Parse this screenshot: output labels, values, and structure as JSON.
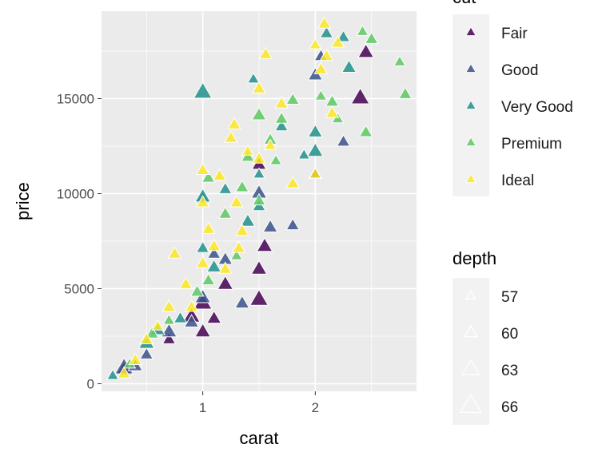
{
  "chart_data": {
    "type": "scatter",
    "title": "",
    "xlabel": "carat",
    "ylabel": "price",
    "xlim": [
      0.1,
      2.9
    ],
    "ylim": [
      -400,
      19600
    ],
    "x_ticks": [
      1,
      2
    ],
    "y_ticks": [
      0,
      5000,
      10000,
      15000
    ],
    "x_tick_labels": [
      "1",
      "2"
    ],
    "y_tick_labels": [
      "0",
      "5000",
      "10000",
      "15000"
    ],
    "marker": "triangle",
    "grid": true,
    "legends": {
      "color": {
        "title": "cut",
        "entries": [
          {
            "label": "Fair",
            "color": "#440154"
          },
          {
            "label": "Good",
            "color": "#3b528b"
          },
          {
            "label": "Very Good",
            "color": "#21908c"
          },
          {
            "label": "Premium",
            "color": "#5dc863"
          },
          {
            "label": "Ideal",
            "color": "#fde725"
          }
        ]
      },
      "size": {
        "title": "depth",
        "entries": [
          {
            "label": "57",
            "value": 57
          },
          {
            "label": "60",
            "value": 60
          },
          {
            "label": "63",
            "value": 63
          },
          {
            "label": "66",
            "value": 66
          }
        ]
      }
    },
    "series": [
      {
        "name": "Fair",
        "points": [
          [
            2.45,
            17400,
            64
          ],
          [
            2.4,
            15000,
            66
          ],
          [
            1.5,
            4400,
            66
          ],
          [
            1.5,
            6000,
            64
          ],
          [
            1.0,
            4200,
            66
          ],
          [
            1.5,
            11500,
            63
          ],
          [
            1.0,
            2700,
            64
          ],
          [
            0.7,
            2300,
            62
          ],
          [
            0.3,
            700,
            64
          ],
          [
            2.0,
            11000,
            62
          ],
          [
            1.2,
            5200,
            64
          ],
          [
            1.55,
            7200,
            64
          ],
          [
            1.1,
            3400,
            63
          ],
          [
            0.9,
            3500,
            65
          ]
        ]
      },
      {
        "name": "Good",
        "points": [
          [
            0.3,
            800,
            66
          ],
          [
            1.8,
            8300,
            62
          ],
          [
            1.5,
            10000,
            64
          ],
          [
            2.0,
            16200,
            63
          ],
          [
            2.05,
            17200,
            62
          ],
          [
            1.35,
            4200,
            63
          ],
          [
            1.0,
            4500,
            64
          ],
          [
            0.5,
            1500,
            62
          ],
          [
            1.0,
            9700,
            62
          ],
          [
            1.2,
            6500,
            63
          ],
          [
            0.7,
            2700,
            64
          ],
          [
            2.25,
            12700,
            62
          ],
          [
            1.6,
            8200,
            63
          ],
          [
            1.1,
            6800,
            62
          ],
          [
            0.9,
            3200,
            63
          ],
          [
            0.4,
            900,
            63
          ]
        ]
      },
      {
        "name": "Very Good",
        "points": [
          [
            1.0,
            15300,
            66
          ],
          [
            2.0,
            12200,
            64
          ],
          [
            1.45,
            16000,
            61
          ],
          [
            2.0,
            13200,
            63
          ],
          [
            2.1,
            18400,
            62
          ],
          [
            2.3,
            16600,
            63
          ],
          [
            2.25,
            18200,
            62
          ],
          [
            1.7,
            13500,
            62
          ],
          [
            1.5,
            11000,
            61
          ],
          [
            1.0,
            7100,
            62
          ],
          [
            0.5,
            2100,
            64
          ],
          [
            0.8,
            3400,
            62
          ],
          [
            1.4,
            8500,
            63
          ],
          [
            1.2,
            10200,
            62
          ],
          [
            1.0,
            9800,
            64
          ],
          [
            0.2,
            400,
            61
          ],
          [
            1.5,
            9300,
            62
          ],
          [
            0.6,
            2800,
            63
          ],
          [
            1.9,
            12000,
            61
          ],
          [
            1.1,
            6100,
            63
          ]
        ]
      },
      {
        "name": "Premium",
        "points": [
          [
            2.42,
            18500,
            61
          ],
          [
            2.5,
            18100,
            62
          ],
          [
            2.75,
            16900,
            61
          ],
          [
            2.8,
            15200,
            62
          ],
          [
            2.45,
            13200,
            62
          ],
          [
            2.15,
            14800,
            62
          ],
          [
            1.5,
            14100,
            63
          ],
          [
            1.7,
            13900,
            62
          ],
          [
            1.65,
            11700,
            61
          ],
          [
            1.4,
            11900,
            62
          ],
          [
            1.05,
            10800,
            62
          ],
          [
            1.2,
            8900,
            62
          ],
          [
            1.05,
            5400,
            62
          ],
          [
            0.55,
            2600,
            62
          ],
          [
            1.3,
            6700,
            61
          ],
          [
            0.95,
            4800,
            62
          ],
          [
            1.5,
            9600,
            62
          ],
          [
            1.6,
            12800,
            62
          ],
          [
            2.05,
            15100,
            61
          ],
          [
            0.7,
            3300,
            61
          ],
          [
            1.35,
            10300,
            62
          ],
          [
            0.35,
            1000,
            61
          ],
          [
            2.2,
            13900,
            61
          ],
          [
            1.8,
            14900,
            62
          ]
        ]
      },
      {
        "name": "Ideal",
        "points": [
          [
            2.08,
            18900,
            62
          ],
          [
            2.0,
            17800,
            61
          ],
          [
            2.2,
            17900,
            62
          ],
          [
            2.1,
            17200,
            62
          ],
          [
            1.56,
            17300,
            62
          ],
          [
            1.28,
            13600,
            62
          ],
          [
            1.25,
            12900,
            62
          ],
          [
            2.0,
            11000,
            61
          ],
          [
            1.0,
            11200,
            62
          ],
          [
            1.0,
            9500,
            62
          ],
          [
            0.75,
            6800,
            62
          ],
          [
            0.7,
            4000,
            62
          ],
          [
            0.4,
            1200,
            62
          ],
          [
            1.5,
            15500,
            62
          ],
          [
            1.5,
            11800,
            62
          ],
          [
            1.35,
            8000,
            62
          ],
          [
            1.1,
            7200,
            62
          ],
          [
            1.2,
            6000,
            62
          ],
          [
            0.5,
            2300,
            62
          ],
          [
            0.9,
            4000,
            62
          ],
          [
            1.6,
            12500,
            61
          ],
          [
            1.8,
            10500,
            62
          ],
          [
            2.05,
            16500,
            62
          ],
          [
            1.3,
            9500,
            62
          ],
          [
            1.05,
            8100,
            62
          ],
          [
            1.32,
            7100,
            62
          ],
          [
            0.6,
            3000,
            61
          ],
          [
            0.3,
            500,
            62
          ],
          [
            2.15,
            14200,
            62
          ],
          [
            1.7,
            14700,
            62
          ],
          [
            1.15,
            10900,
            62
          ],
          [
            1.4,
            12200,
            61
          ],
          [
            0.85,
            5200,
            62
          ],
          [
            1.0,
            6300,
            62
          ]
        ]
      }
    ]
  }
}
